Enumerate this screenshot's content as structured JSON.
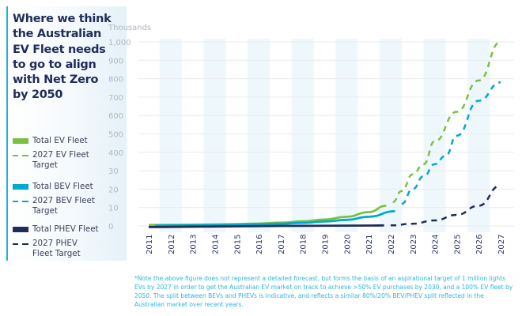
{
  "title": "Where we think the Australian EV Fleet needs to go to align with Net Zero by 2050",
  "legend": [
    {
      "label": "Total EV Fleet",
      "style": "solid",
      "color": "#7ac143"
    },
    {
      "label": "2027 EV Fleet Target",
      "style": "dashed",
      "color": "#7ac143"
    },
    {
      "label": "Total BEV Fleet",
      "style": "solid",
      "color": "#00a9ce"
    },
    {
      "label": "2027 BEV Fleet Target",
      "style": "dashed",
      "color": "#00a9ce"
    },
    {
      "label": "Total PHEV Fleet",
      "style": "solid",
      "color": "#1e2d5a"
    },
    {
      "label": "2027 PHEV Fleet Target",
      "style": "dashed",
      "color": "#1e2d5a"
    }
  ],
  "footnote": "*Note the above figure does not represent a detailed forecast, but forms the basis of an aspirational target of 1 million lights EVs by 2027 in order to  get the Australian EV market on track to achieve >50% EV purchases by 2030, and a 100% EV fleet by 2050. The split between BEVs and PHEVs is indicative, and reflects a similar 80%/20% BEV/PHEV split reflected in the Australian market over recent years.",
  "chart_data": {
    "type": "line",
    "title": "Where we think the Australian EV Fleet needs to go to align with Net Zero by 2050",
    "ylabel": "Thousands",
    "xlabel": "",
    "y_ticks": [
      0,
      10,
      20,
      30,
      400,
      500,
      600,
      700,
      800,
      900,
      1000
    ],
    "y_tick_labels": [
      "0",
      "10",
      "20",
      "30",
      "400",
      "500",
      "600",
      "700",
      "800",
      "900",
      "1,000"
    ],
    "x_ticks": [
      "2011",
      "2012",
      "2013",
      "2014",
      "2015",
      "2016",
      "2017",
      "2018",
      "2019",
      "2020",
      "2021",
      "2022",
      "2023",
      "2024",
      "2025",
      "2026",
      "2027"
    ],
    "grid": true,
    "series": [
      {
        "name": "Total EV Fleet",
        "color": "#7ac143",
        "dashed": false,
        "x": [
          2011,
          2012,
          2013,
          2014,
          2015,
          2016,
          2017,
          2018,
          2019,
          2020,
          2021,
          2021.8
        ],
        "y": [
          0.5,
          0.6,
          0.7,
          0.8,
          1,
          1.3,
          1.8,
          2.5,
          3.5,
          5,
          7.5,
          11
        ]
      },
      {
        "name": "2027 EV Fleet Target",
        "color": "#7ac143",
        "dashed": true,
        "x": [
          2022.1,
          2022.5,
          2023,
          2023.5,
          2024,
          2025,
          2026,
          2027
        ],
        "y": [
          13,
          19,
          28,
          160,
          460,
          620,
          790,
          1000
        ]
      },
      {
        "name": "Total BEV Fleet",
        "color": "#00a9ce",
        "dashed": false,
        "x": [
          2011.3,
          2012,
          2013,
          2014,
          2015,
          2016,
          2017,
          2018,
          2019,
          2020,
          2021,
          2022.2
        ],
        "y": [
          0.2,
          0.3,
          0.4,
          0.5,
          0.7,
          0.9,
          1.2,
          1.7,
          2.4,
          3.3,
          5,
          8
        ]
      },
      {
        "name": "2027 BEV Fleet Target",
        "color": "#00a9ce",
        "dashed": true,
        "x": [
          2022.5,
          2023,
          2023.5,
          2024,
          2024.5,
          2025,
          2026,
          2027
        ],
        "y": [
          12,
          20,
          27,
          160,
          330,
          490,
          680,
          780
        ]
      },
      {
        "name": "Total PHEV Fleet",
        "color": "#1e2d5a",
        "dashed": false,
        "x": [
          2011,
          2013,
          2015,
          2017,
          2019,
          2021,
          2021.7
        ],
        "y": [
          -0.6,
          -0.4,
          -0.2,
          0,
          0.1,
          0.2,
          0.3
        ]
      },
      {
        "name": "2027 PHEV Fleet Target",
        "color": "#1e2d5a",
        "dashed": true,
        "x": [
          2022,
          2023,
          2024,
          2025,
          2026,
          2027
        ],
        "y": [
          0.3,
          1.2,
          3,
          6,
          11,
          22
        ]
      }
    ]
  }
}
